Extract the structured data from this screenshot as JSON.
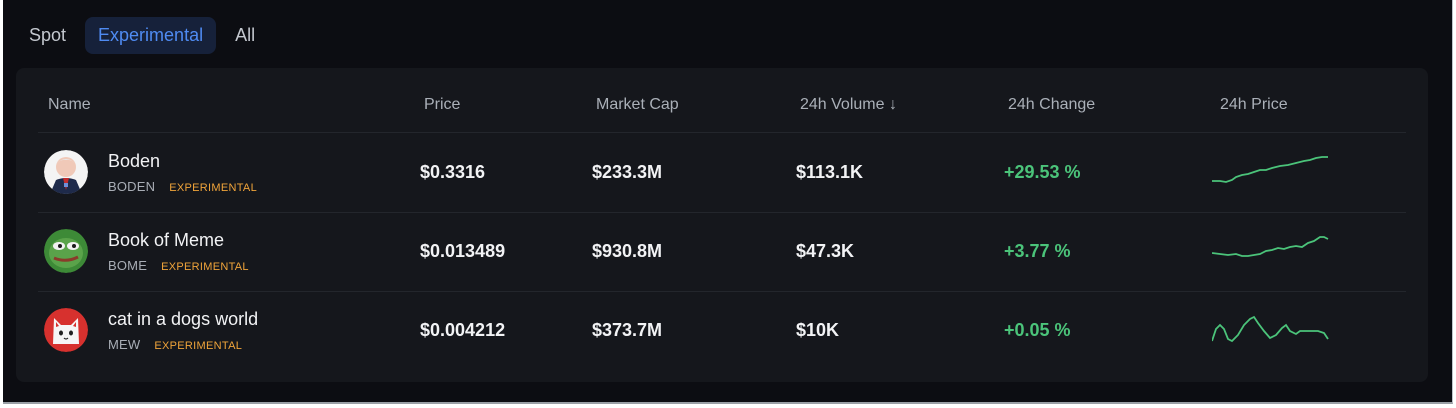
{
  "tabs": [
    {
      "label": "Spot",
      "active": false
    },
    {
      "label": "Experimental",
      "active": true
    },
    {
      "label": "All",
      "active": false
    }
  ],
  "table": {
    "headers": {
      "name": "Name",
      "price": "Price",
      "market_cap": "Market Cap",
      "volume": "24h Volume ↓",
      "change": "24h Change",
      "chart": "24h Price"
    },
    "rows": [
      {
        "name": "Boden",
        "symbol": "BODEN",
        "badge": "EXPERIMENTAL",
        "price": "$0.3316",
        "market_cap": "$233.3M",
        "volume": "$113.1K",
        "change": "+29.53 %",
        "icon": "boden-avatar-icon"
      },
      {
        "name": "Book of Meme",
        "symbol": "BOME",
        "badge": "EXPERIMENTAL",
        "price": "$0.013489",
        "market_cap": "$930.8M",
        "volume": "$47.3K",
        "change": "+3.77 %",
        "icon": "pepe-avatar-icon"
      },
      {
        "name": "cat in a dogs world",
        "symbol": "MEW",
        "badge": "EXPERIMENTAL",
        "price": "$0.004212",
        "market_cap": "$373.7M",
        "volume": "$10K",
        "change": "+0.05 %",
        "icon": "cat-avatar-icon"
      }
    ]
  },
  "colors": {
    "background": "#0c0d12",
    "panel": "#15171c",
    "accent": "#4f8bf2",
    "positive": "#4bc47a",
    "badge": "#f0a43a"
  }
}
